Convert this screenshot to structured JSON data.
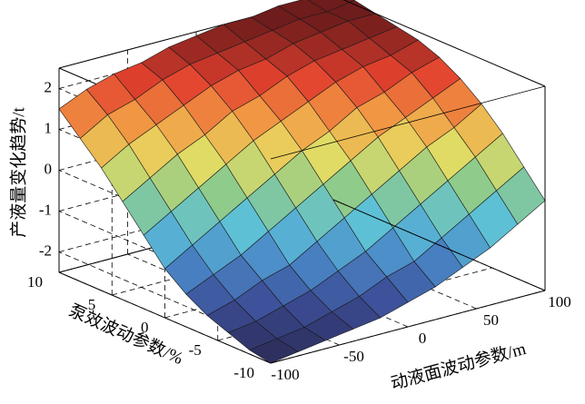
{
  "chart_data": {
    "type": "surface",
    "xlabel": "动液面波动参数/m",
    "ylabel": "泵效波动参数/%",
    "zlabel": "产液量变化趋势/t",
    "x": [
      -100,
      -80,
      -60,
      -40,
      -20,
      0,
      20,
      40,
      60,
      80,
      100
    ],
    "y": [
      -10,
      -8,
      -6,
      -4,
      -2,
      0,
      2,
      4,
      6,
      8,
      10
    ],
    "z": [
      [
        -2.5,
        -2.4,
        -2.3,
        -2.2,
        -2.1,
        -1.9,
        -1.7,
        -1.4,
        -1.1,
        -0.7,
        -0.3
      ],
      [
        -2.4,
        -2.3,
        -2.2,
        -2.0,
        -1.8,
        -1.5,
        -1.3,
        -0.9,
        -0.5,
        -0.1,
        0.3
      ],
      [
        -2.2,
        -2.1,
        -1.9,
        -1.7,
        -1.4,
        -1.1,
        -0.7,
        -0.3,
        0.1,
        0.5,
        0.9
      ],
      [
        -2.0,
        -1.8,
        -1.5,
        -1.3,
        -0.9,
        -0.5,
        -0.1,
        0.3,
        0.7,
        1.0,
        1.4
      ],
      [
        -1.7,
        -1.4,
        -1.1,
        -0.7,
        -0.3,
        0.1,
        0.5,
        0.9,
        1.2,
        1.5,
        1.8
      ],
      [
        -1.3,
        -0.9,
        -0.5,
        -0.1,
        0.3,
        0.7,
        1.0,
        1.4,
        1.6,
        1.9,
        2.1
      ],
      [
        -0.7,
        -0.3,
        0.1,
        0.5,
        0.9,
        1.2,
        1.5,
        1.8,
        2.0,
        2.1,
        2.3
      ],
      [
        -0.1,
        0.3,
        0.7,
        1.0,
        1.4,
        1.6,
        1.9,
        2.1,
        2.2,
        2.3,
        2.4
      ],
      [
        0.5,
        0.9,
        1.2,
        1.5,
        1.8,
        2.0,
        2.1,
        2.3,
        2.4,
        2.5,
        2.5
      ],
      [
        1.0,
        1.4,
        1.6,
        1.9,
        2.1,
        2.2,
        2.3,
        2.4,
        2.5,
        2.5,
        2.6
      ],
      [
        1.5,
        1.8,
        2.0,
        2.1,
        2.3,
        2.4,
        2.5,
        2.5,
        2.6,
        2.6,
        2.6
      ]
    ],
    "xlim": [
      -100,
      100
    ],
    "ylim": [
      -10,
      10
    ],
    "zlim": [
      -2.5,
      2.5
    ],
    "xticks": [
      -100,
      -50,
      0,
      50,
      100
    ],
    "yticks": [
      -10,
      -5,
      0,
      5,
      10
    ],
    "zticks": [
      -2,
      -1,
      0,
      1,
      2
    ],
    "colormap": [
      "#2b2a55",
      "#3c4d96",
      "#4a86c6",
      "#5cc0d8",
      "#8fcb8a",
      "#e6dc62",
      "#f29a44",
      "#e2402e",
      "#6e1c1c"
    ],
    "grid": true
  }
}
